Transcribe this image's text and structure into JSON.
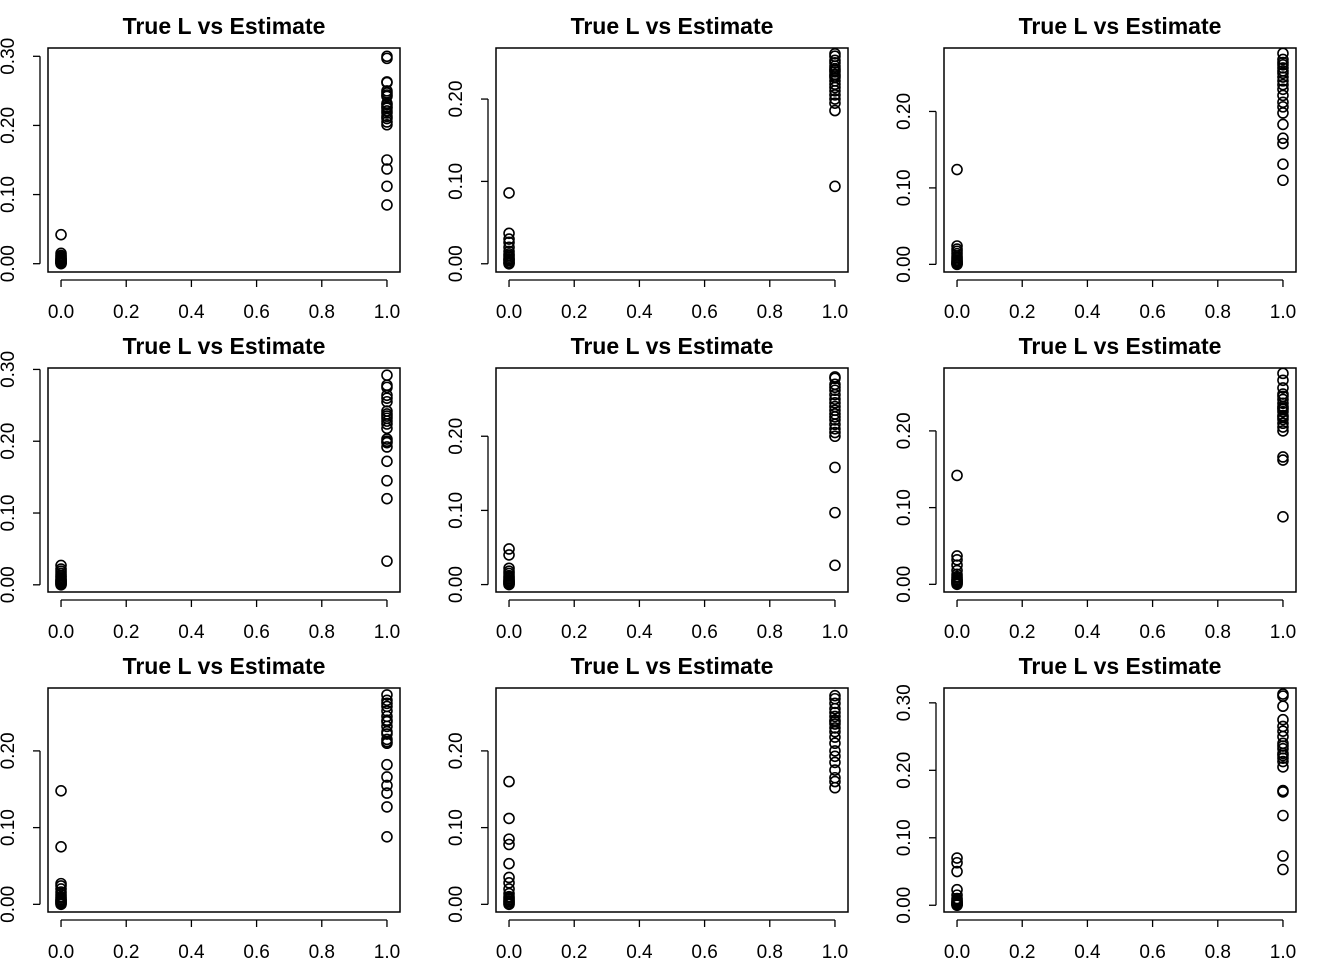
{
  "panels": [
    {
      "chart_data": {
        "type": "scatter",
        "title": "True L vs Estimate",
        "xlabel": "",
        "ylabel": "",
        "xlim": [
          -0.04,
          1.04
        ],
        "ylim": [
          -0.012,
          0.312
        ],
        "xticks": [
          "0.0",
          "0.2",
          "0.4",
          "0.6",
          "0.8",
          "1.0"
        ],
        "yticks": [
          "0.00",
          "0.10",
          "0.20",
          "0.30"
        ],
        "grid": false,
        "series": [
          {
            "x": [
              0,
              0,
              0,
              0,
              0,
              0,
              0,
              0,
              0,
              0,
              0,
              0,
              0,
              0,
              0,
              1,
              1,
              1,
              1,
              1,
              1,
              1,
              1,
              1,
              1,
              1,
              1,
              1,
              1,
              1,
              1,
              1,
              1,
              1,
              1,
              1,
              1
            ],
            "y": [
              0.042,
              0.015,
              0.012,
              0.01,
              0.008,
              0.007,
              0.006,
              0.005,
              0.004,
              0.004,
              0.003,
              0.002,
              0.001,
              0.001,
              0.0,
              0.3,
              0.297,
              0.263,
              0.25,
              0.247,
              0.242,
              0.232,
              0.227,
              0.225,
              0.221,
              0.218,
              0.213,
              0.21,
              0.205,
              0.201,
              0.15,
              0.137,
              0.112,
              0.085,
              0.262,
              0.23,
              0.244
            ]
          }
        ]
      }
    },
    {
      "chart_data": {
        "type": "scatter",
        "title": "True L vs Estimate",
        "xlabel": "",
        "ylabel": "",
        "xlim": [
          -0.04,
          1.04
        ],
        "ylim": [
          -0.01,
          0.262
        ],
        "xticks": [
          "0.0",
          "0.2",
          "0.4",
          "0.6",
          "0.8",
          "1.0"
        ],
        "yticks": [
          "0.00",
          "0.10",
          "0.20"
        ],
        "grid": false,
        "series": [
          {
            "x": [
              0,
              0,
              0,
              0,
              0,
              0,
              0,
              0,
              0,
              0,
              0,
              0,
              0,
              0,
              0,
              1,
              1,
              1,
              1,
              1,
              1,
              1,
              1,
              1,
              1,
              1,
              1,
              1,
              1,
              1,
              1,
              1,
              1,
              1,
              1
            ],
            "y": [
              0.086,
              0.037,
              0.03,
              0.026,
              0.02,
              0.015,
              0.012,
              0.01,
              0.008,
              0.006,
              0.005,
              0.004,
              0.002,
              0.001,
              0.0,
              0.255,
              0.252,
              0.247,
              0.244,
              0.24,
              0.237,
              0.233,
              0.23,
              0.226,
              0.222,
              0.218,
              0.214,
              0.21,
              0.205,
              0.2,
              0.195,
              0.186,
              0.094,
              0.235,
              0.228
            ]
          }
        ]
      }
    },
    {
      "chart_data": {
        "type": "scatter",
        "title": "True L vs Estimate",
        "xlabel": "",
        "ylabel": "",
        "xlim": [
          -0.04,
          1.04
        ],
        "ylim": [
          -0.01,
          0.283
        ],
        "xticks": [
          "0.0",
          "0.2",
          "0.4",
          "0.6",
          "0.8",
          "1.0"
        ],
        "yticks": [
          "0.00",
          "0.10",
          "0.20"
        ],
        "grid": false,
        "series": [
          {
            "x": [
              0,
              0,
              0,
              0,
              0,
              0,
              0,
              0,
              0,
              0,
              0,
              0,
              0,
              0,
              0,
              1,
              1,
              1,
              1,
              1,
              1,
              1,
              1,
              1,
              1,
              1,
              1,
              1,
              1,
              1,
              1,
              1,
              1,
              1,
              1
            ],
            "y": [
              0.124,
              0.024,
              0.02,
              0.017,
              0.014,
              0.011,
              0.009,
              0.007,
              0.005,
              0.004,
              0.003,
              0.002,
              0.001,
              0.001,
              0.0,
              0.276,
              0.264,
              0.261,
              0.257,
              0.25,
              0.24,
              0.235,
              0.229,
              0.212,
              0.206,
              0.198,
              0.183,
              0.165,
              0.158,
              0.131,
              0.11,
              0.253,
              0.245,
              0.221,
              0.268
            ]
          }
        ]
      }
    },
    {
      "chart_data": {
        "type": "scatter",
        "title": "True L vs Estimate",
        "xlabel": "",
        "ylabel": "",
        "xlim": [
          -0.04,
          1.04
        ],
        "ylim": [
          -0.01,
          0.302
        ],
        "xticks": [
          "0.0",
          "0.2",
          "0.4",
          "0.6",
          "0.8",
          "1.0"
        ],
        "yticks": [
          "0.00",
          "0.10",
          "0.20",
          "0.30"
        ],
        "grid": false,
        "series": [
          {
            "x": [
              0,
              0,
              0,
              0,
              0,
              0,
              0,
              0,
              0,
              0,
              0,
              0,
              0,
              0,
              0,
              1,
              1,
              1,
              1,
              1,
              1,
              1,
              1,
              1,
              1,
              1,
              1,
              1,
              1,
              1,
              1,
              1,
              1,
              1,
              1,
              1
            ],
            "y": [
              0.027,
              0.022,
              0.019,
              0.016,
              0.013,
              0.011,
              0.009,
              0.007,
              0.006,
              0.005,
              0.004,
              0.003,
              0.002,
              0.001,
              0.0,
              0.292,
              0.278,
              0.275,
              0.264,
              0.26,
              0.242,
              0.238,
              0.232,
              0.228,
              0.224,
              0.203,
              0.198,
              0.192,
              0.172,
              0.145,
              0.12,
              0.033,
              0.255,
              0.218,
              0.235,
              0.2
            ]
          }
        ]
      }
    },
    {
      "chart_data": {
        "type": "scatter",
        "title": "True L vs Estimate",
        "xlabel": "",
        "ylabel": "",
        "xlim": [
          -0.04,
          1.04
        ],
        "ylim": [
          -0.01,
          0.292
        ],
        "xticks": [
          "0.0",
          "0.2",
          "0.4",
          "0.6",
          "0.8",
          "1.0"
        ],
        "yticks": [
          "0.00",
          "0.10",
          "0.20"
        ],
        "grid": false,
        "series": [
          {
            "x": [
              0,
              0,
              0,
              0,
              0,
              0,
              0,
              0,
              0,
              0,
              0,
              0,
              0,
              0,
              0,
              1,
              1,
              1,
              1,
              1,
              1,
              1,
              1,
              1,
              1,
              1,
              1,
              1,
              1,
              1,
              1,
              1,
              1,
              1,
              1
            ],
            "y": [
              0.048,
              0.04,
              0.022,
              0.018,
              0.015,
              0.012,
              0.01,
              0.008,
              0.006,
              0.005,
              0.004,
              0.003,
              0.002,
              0.001,
              0.0,
              0.28,
              0.278,
              0.266,
              0.262,
              0.256,
              0.25,
              0.245,
              0.235,
              0.23,
              0.222,
              0.216,
              0.21,
              0.205,
              0.2,
              0.158,
              0.097,
              0.026,
              0.24,
              0.226,
              0.27
            ]
          }
        ]
      }
    },
    {
      "chart_data": {
        "type": "scatter",
        "title": "True L vs Estimate",
        "xlabel": "",
        "ylabel": "",
        "xlim": [
          -0.04,
          1.04
        ],
        "ylim": [
          -0.01,
          0.282
        ],
        "xticks": [
          "0.0",
          "0.2",
          "0.4",
          "0.6",
          "0.8",
          "1.0"
        ],
        "yticks": [
          "0.00",
          "0.10",
          "0.20"
        ],
        "grid": false,
        "series": [
          {
            "x": [
              0,
              0,
              0,
              0,
              0,
              0,
              0,
              0,
              0,
              0,
              0,
              0,
              0,
              0,
              0,
              1,
              1,
              1,
              1,
              1,
              1,
              1,
              1,
              1,
              1,
              1,
              1,
              1,
              1,
              1,
              1,
              1,
              1,
              1,
              1
            ],
            "y": [
              0.142,
              0.037,
              0.032,
              0.025,
              0.018,
              0.013,
              0.01,
              0.008,
              0.006,
              0.005,
              0.004,
              0.003,
              0.002,
              0.001,
              0.0,
              0.275,
              0.266,
              0.256,
              0.248,
              0.241,
              0.236,
              0.23,
              0.225,
              0.22,
              0.215,
              0.21,
              0.2,
              0.166,
              0.162,
              0.088,
              0.245,
              0.232,
              0.218,
              0.205,
              0.228
            ]
          }
        ]
      }
    },
    {
      "chart_data": {
        "type": "scatter",
        "title": "True L vs Estimate",
        "xlabel": "",
        "ylabel": "",
        "xlim": [
          -0.04,
          1.04
        ],
        "ylim": [
          -0.01,
          0.282
        ],
        "xticks": [
          "0.0",
          "0.2",
          "0.4",
          "0.6",
          "0.8",
          "1.0"
        ],
        "yticks": [
          "0.00",
          "0.10",
          "0.20"
        ],
        "grid": false,
        "series": [
          {
            "x": [
              0,
              0,
              0,
              0,
              0,
              0,
              0,
              0,
              0,
              0,
              0,
              0,
              0,
              0,
              0,
              0,
              1,
              1,
              1,
              1,
              1,
              1,
              1,
              1,
              1,
              1,
              1,
              1,
              1,
              1,
              1,
              1,
              1,
              1,
              1,
              1
            ],
            "y": [
              0.148,
              0.075,
              0.027,
              0.024,
              0.02,
              0.016,
              0.013,
              0.01,
              0.008,
              0.006,
              0.005,
              0.004,
              0.003,
              0.002,
              0.001,
              0.0,
              0.273,
              0.266,
              0.258,
              0.252,
              0.245,
              0.24,
              0.232,
              0.225,
              0.215,
              0.21,
              0.182,
              0.166,
              0.155,
              0.145,
              0.127,
              0.088,
              0.262,
              0.238,
              0.222,
              0.212
            ]
          }
        ]
      }
    },
    {
      "chart_data": {
        "type": "scatter",
        "title": "True L vs Estimate",
        "xlabel": "",
        "ylabel": "",
        "xlim": [
          -0.04,
          1.04
        ],
        "ylim": [
          -0.01,
          0.282
        ],
        "xticks": [
          "0.0",
          "0.2",
          "0.4",
          "0.6",
          "0.8",
          "1.0"
        ],
        "yticks": [
          "0.00",
          "0.10",
          "0.20"
        ],
        "grid": false,
        "series": [
          {
            "x": [
              0,
              0,
              0,
              0,
              0,
              0,
              0,
              0,
              0,
              0,
              0,
              0,
              0,
              0,
              0,
              0,
              1,
              1,
              1,
              1,
              1,
              1,
              1,
              1,
              1,
              1,
              1,
              1,
              1,
              1,
              1,
              1,
              1,
              1,
              1,
              1
            ],
            "y": [
              0.16,
              0.112,
              0.085,
              0.078,
              0.053,
              0.035,
              0.028,
              0.02,
              0.014,
              0.01,
              0.008,
              0.006,
              0.004,
              0.003,
              0.001,
              0.0,
              0.272,
              0.268,
              0.255,
              0.25,
              0.245,
              0.24,
              0.235,
              0.23,
              0.225,
              0.218,
              0.21,
              0.2,
              0.193,
              0.185,
              0.175,
              0.165,
              0.16,
              0.152,
              0.262,
              0.238
            ]
          }
        ]
      }
    },
    {
      "chart_data": {
        "type": "scatter",
        "title": "True L vs Estimate",
        "xlabel": "",
        "ylabel": "",
        "xlim": [
          -0.04,
          1.04
        ],
        "ylim": [
          -0.01,
          0.322
        ],
        "xticks": [
          "0.0",
          "0.2",
          "0.4",
          "0.6",
          "0.8",
          "1.0"
        ],
        "yticks": [
          "0.00",
          "0.10",
          "0.20",
          "0.30"
        ],
        "grid": false,
        "series": [
          {
            "x": [
              0,
              0,
              0,
              0,
              0,
              0,
              0,
              0,
              0,
              0,
              0,
              0,
              0,
              0,
              0,
              1,
              1,
              1,
              1,
              1,
              1,
              1,
              1,
              1,
              1,
              1,
              1,
              1,
              1,
              1,
              1,
              1,
              1,
              1,
              1
            ],
            "y": [
              0.07,
              0.063,
              0.05,
              0.023,
              0.015,
              0.01,
              0.008,
              0.006,
              0.005,
              0.004,
              0.003,
              0.002,
              0.001,
              0.001,
              0.0,
              0.313,
              0.31,
              0.295,
              0.275,
              0.258,
              0.25,
              0.24,
              0.232,
              0.225,
              0.218,
              0.213,
              0.205,
              0.17,
              0.168,
              0.133,
              0.073,
              0.053,
              0.265,
              0.236,
              0.222
            ]
          }
        ]
      }
    }
  ]
}
